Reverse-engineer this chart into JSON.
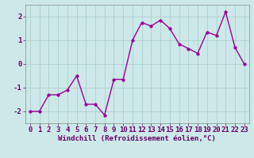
{
  "x": [
    0,
    1,
    2,
    3,
    4,
    5,
    6,
    7,
    8,
    9,
    10,
    11,
    12,
    13,
    14,
    15,
    16,
    17,
    18,
    19,
    20,
    21,
    22,
    23
  ],
  "y": [
    -2.0,
    -2.0,
    -1.3,
    -1.3,
    -1.1,
    -0.5,
    -1.7,
    -1.7,
    -2.15,
    -0.65,
    -0.65,
    1.0,
    1.75,
    1.6,
    1.85,
    1.5,
    0.85,
    0.65,
    0.45,
    1.35,
    1.2,
    2.2,
    0.7,
    0.0
  ],
  "line_color": "#990099",
  "marker": "o",
  "marker_size": 2.5,
  "linewidth": 1.0,
  "xlabel": "Windchill (Refroidissement éolien,°C)",
  "xlim": [
    -0.5,
    23.5
  ],
  "ylim": [
    -2.5,
    2.5
  ],
  "yticks": [
    -2,
    -1,
    0,
    1,
    2
  ],
  "xticks": [
    0,
    1,
    2,
    3,
    4,
    5,
    6,
    7,
    8,
    9,
    10,
    11,
    12,
    13,
    14,
    15,
    16,
    17,
    18,
    19,
    20,
    21,
    22,
    23
  ],
  "background_color": "#cce8e8",
  "grid_color": "#aacccc",
  "tick_fontsize": 6.5,
  "xlabel_fontsize": 6.5
}
